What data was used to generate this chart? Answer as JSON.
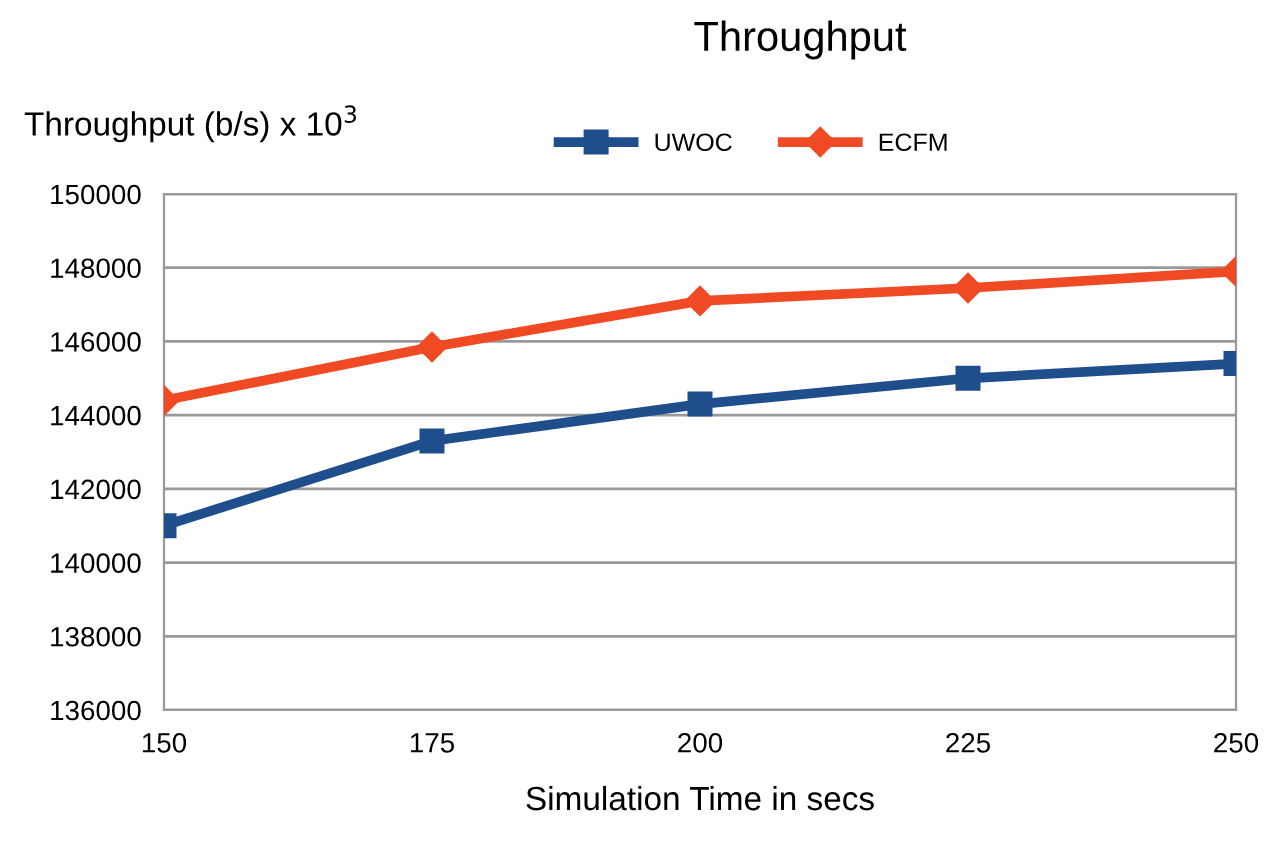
{
  "chart_data": {
    "type": "line",
    "title": "Throughput",
    "xlabel": "Simulation Time in secs",
    "ylabel": "Throughput (b/s) x 10$^{3}$",
    "x": [
      150,
      175,
      200,
      225,
      250
    ],
    "series": [
      {
        "name": "UWOC",
        "color": "#1f4e8c",
        "marker": "square",
        "values": [
          141000,
          143300,
          144300,
          145000,
          145400
        ]
      },
      {
        "name": "ECFM",
        "color": "#f04a24",
        "marker": "diamond",
        "values": [
          144400,
          145850,
          147100,
          147450,
          147900
        ]
      }
    ],
    "xlim": [
      150,
      250
    ],
    "xticks": [
      150,
      175,
      200,
      225,
      250
    ],
    "ylim": [
      136000,
      150000
    ],
    "yticks": [
      136000,
      138000,
      140000,
      142000,
      144000,
      146000,
      148000,
      150000
    ],
    "grid": "y",
    "legend": "top",
    "line_style": "solid"
  }
}
